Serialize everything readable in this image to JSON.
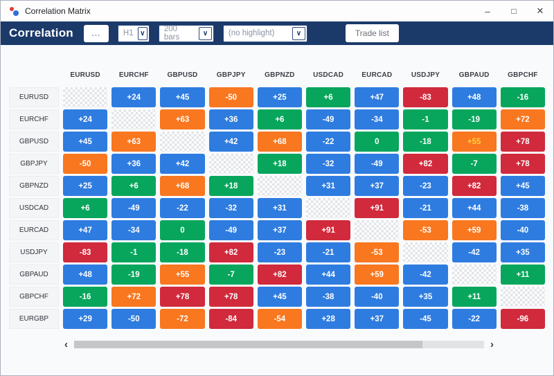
{
  "window": {
    "title": "Correlation Matrix",
    "controls": {
      "minimize": "–",
      "maximize": "□",
      "close": "✕"
    }
  },
  "toolbar": {
    "title": "Correlation",
    "more_button": "...",
    "chevron": "∨",
    "timeframe": {
      "value": "H1"
    },
    "bars": {
      "value": "200 bars"
    },
    "highlight": {
      "value": "(no highlight)"
    },
    "trade_list_button": "Trade list"
  },
  "colors": {
    "navy": "#1b3a6a",
    "blue": "#2e7ce0",
    "green": "#07a65c",
    "orange": "#f8771f",
    "red": "#d02a3c",
    "highlight_text": "#ffd43b"
  },
  "scrollbar": {
    "left": "‹",
    "right": "›"
  },
  "matrix": {
    "columns": [
      "EURUSD",
      "EURCHF",
      "GBPUSD",
      "GBPJPY",
      "GBPNZD",
      "USDCAD",
      "EURCAD",
      "USDJPY",
      "GBPAUD",
      "GBPCHF"
    ],
    "rows": [
      {
        "label": "EURUSD",
        "cells": [
          null,
          {
            "v": "+24",
            "c": "blue"
          },
          {
            "v": "+45",
            "c": "blue"
          },
          {
            "v": "-50",
            "c": "orange"
          },
          {
            "v": "+25",
            "c": "blue"
          },
          {
            "v": "+6",
            "c": "green"
          },
          {
            "v": "+47",
            "c": "blue"
          },
          {
            "v": "-83",
            "c": "red"
          },
          {
            "v": "+48",
            "c": "blue"
          },
          {
            "v": "-16",
            "c": "green"
          }
        ]
      },
      {
        "label": "EURCHF",
        "cells": [
          {
            "v": "+24",
            "c": "blue"
          },
          null,
          {
            "v": "+63",
            "c": "orange"
          },
          {
            "v": "+36",
            "c": "blue"
          },
          {
            "v": "+6",
            "c": "green"
          },
          {
            "v": "-49",
            "c": "blue"
          },
          {
            "v": "-34",
            "c": "blue"
          },
          {
            "v": "-1",
            "c": "green"
          },
          {
            "v": "-19",
            "c": "green"
          },
          {
            "v": "+72",
            "c": "orange"
          }
        ]
      },
      {
        "label": "GBPUSD",
        "cells": [
          {
            "v": "+45",
            "c": "blue"
          },
          {
            "v": "+63",
            "c": "orange"
          },
          null,
          {
            "v": "+42",
            "c": "blue"
          },
          {
            "v": "+68",
            "c": "orange"
          },
          {
            "v": "-22",
            "c": "blue"
          },
          {
            "v": "0",
            "c": "green"
          },
          {
            "v": "-18",
            "c": "green"
          },
          {
            "v": "+55",
            "c": "orange",
            "t": "highlight_text"
          },
          {
            "v": "+78",
            "c": "red"
          }
        ]
      },
      {
        "label": "GBPJPY",
        "cells": [
          {
            "v": "-50",
            "c": "orange"
          },
          {
            "v": "+36",
            "c": "blue"
          },
          {
            "v": "+42",
            "c": "blue"
          },
          null,
          {
            "v": "+18",
            "c": "green"
          },
          {
            "v": "-32",
            "c": "blue"
          },
          {
            "v": "-49",
            "c": "blue"
          },
          {
            "v": "+82",
            "c": "red"
          },
          {
            "v": "-7",
            "c": "green"
          },
          {
            "v": "+78",
            "c": "red"
          }
        ]
      },
      {
        "label": "GBPNZD",
        "cells": [
          {
            "v": "+25",
            "c": "blue"
          },
          {
            "v": "+6",
            "c": "green"
          },
          {
            "v": "+68",
            "c": "orange"
          },
          {
            "v": "+18",
            "c": "green"
          },
          null,
          {
            "v": "+31",
            "c": "blue"
          },
          {
            "v": "+37",
            "c": "blue"
          },
          {
            "v": "-23",
            "c": "blue"
          },
          {
            "v": "+82",
            "c": "red"
          },
          {
            "v": "+45",
            "c": "blue"
          }
        ]
      },
      {
        "label": "USDCAD",
        "cells": [
          {
            "v": "+6",
            "c": "green"
          },
          {
            "v": "-49",
            "c": "blue"
          },
          {
            "v": "-22",
            "c": "blue"
          },
          {
            "v": "-32",
            "c": "blue"
          },
          {
            "v": "+31",
            "c": "blue"
          },
          null,
          {
            "v": "+91",
            "c": "red"
          },
          {
            "v": "-21",
            "c": "blue"
          },
          {
            "v": "+44",
            "c": "blue"
          },
          {
            "v": "-38",
            "c": "blue"
          }
        ]
      },
      {
        "label": "EURCAD",
        "cells": [
          {
            "v": "+47",
            "c": "blue"
          },
          {
            "v": "-34",
            "c": "blue"
          },
          {
            "v": "0",
            "c": "green"
          },
          {
            "v": "-49",
            "c": "blue"
          },
          {
            "v": "+37",
            "c": "blue"
          },
          {
            "v": "+91",
            "c": "red"
          },
          null,
          {
            "v": "-53",
            "c": "orange"
          },
          {
            "v": "+59",
            "c": "orange"
          },
          {
            "v": "-40",
            "c": "blue"
          }
        ]
      },
      {
        "label": "USDJPY",
        "cells": [
          {
            "v": "-83",
            "c": "red"
          },
          {
            "v": "-1",
            "c": "green"
          },
          {
            "v": "-18",
            "c": "green"
          },
          {
            "v": "+82",
            "c": "red"
          },
          {
            "v": "-23",
            "c": "blue"
          },
          {
            "v": "-21",
            "c": "blue"
          },
          {
            "v": "-53",
            "c": "orange"
          },
          null,
          {
            "v": "-42",
            "c": "blue"
          },
          {
            "v": "+35",
            "c": "blue"
          }
        ]
      },
      {
        "label": "GBPAUD",
        "cells": [
          {
            "v": "+48",
            "c": "blue"
          },
          {
            "v": "-19",
            "c": "green"
          },
          {
            "v": "+55",
            "c": "orange"
          },
          {
            "v": "-7",
            "c": "green"
          },
          {
            "v": "+82",
            "c": "red"
          },
          {
            "v": "+44",
            "c": "blue"
          },
          {
            "v": "+59",
            "c": "orange"
          },
          {
            "v": "-42",
            "c": "blue"
          },
          null,
          {
            "v": "+11",
            "c": "green"
          }
        ]
      },
      {
        "label": "GBPCHF",
        "cells": [
          {
            "v": "-16",
            "c": "green"
          },
          {
            "v": "+72",
            "c": "orange"
          },
          {
            "v": "+78",
            "c": "red"
          },
          {
            "v": "+78",
            "c": "red"
          },
          {
            "v": "+45",
            "c": "blue"
          },
          {
            "v": "-38",
            "c": "blue"
          },
          {
            "v": "-40",
            "c": "blue"
          },
          {
            "v": "+35",
            "c": "blue"
          },
          {
            "v": "+11",
            "c": "green"
          },
          null
        ]
      },
      {
        "label": "EURGBP",
        "cells": [
          {
            "v": "+29",
            "c": "blue"
          },
          {
            "v": "-50",
            "c": "blue"
          },
          {
            "v": "-72",
            "c": "orange"
          },
          {
            "v": "-84",
            "c": "red"
          },
          {
            "v": "-54",
            "c": "orange"
          },
          {
            "v": "+28",
            "c": "blue"
          },
          {
            "v": "+37",
            "c": "blue"
          },
          {
            "v": "-45",
            "c": "blue"
          },
          {
            "v": "-22",
            "c": "blue"
          },
          {
            "v": "-96",
            "c": "red"
          }
        ]
      }
    ]
  }
}
